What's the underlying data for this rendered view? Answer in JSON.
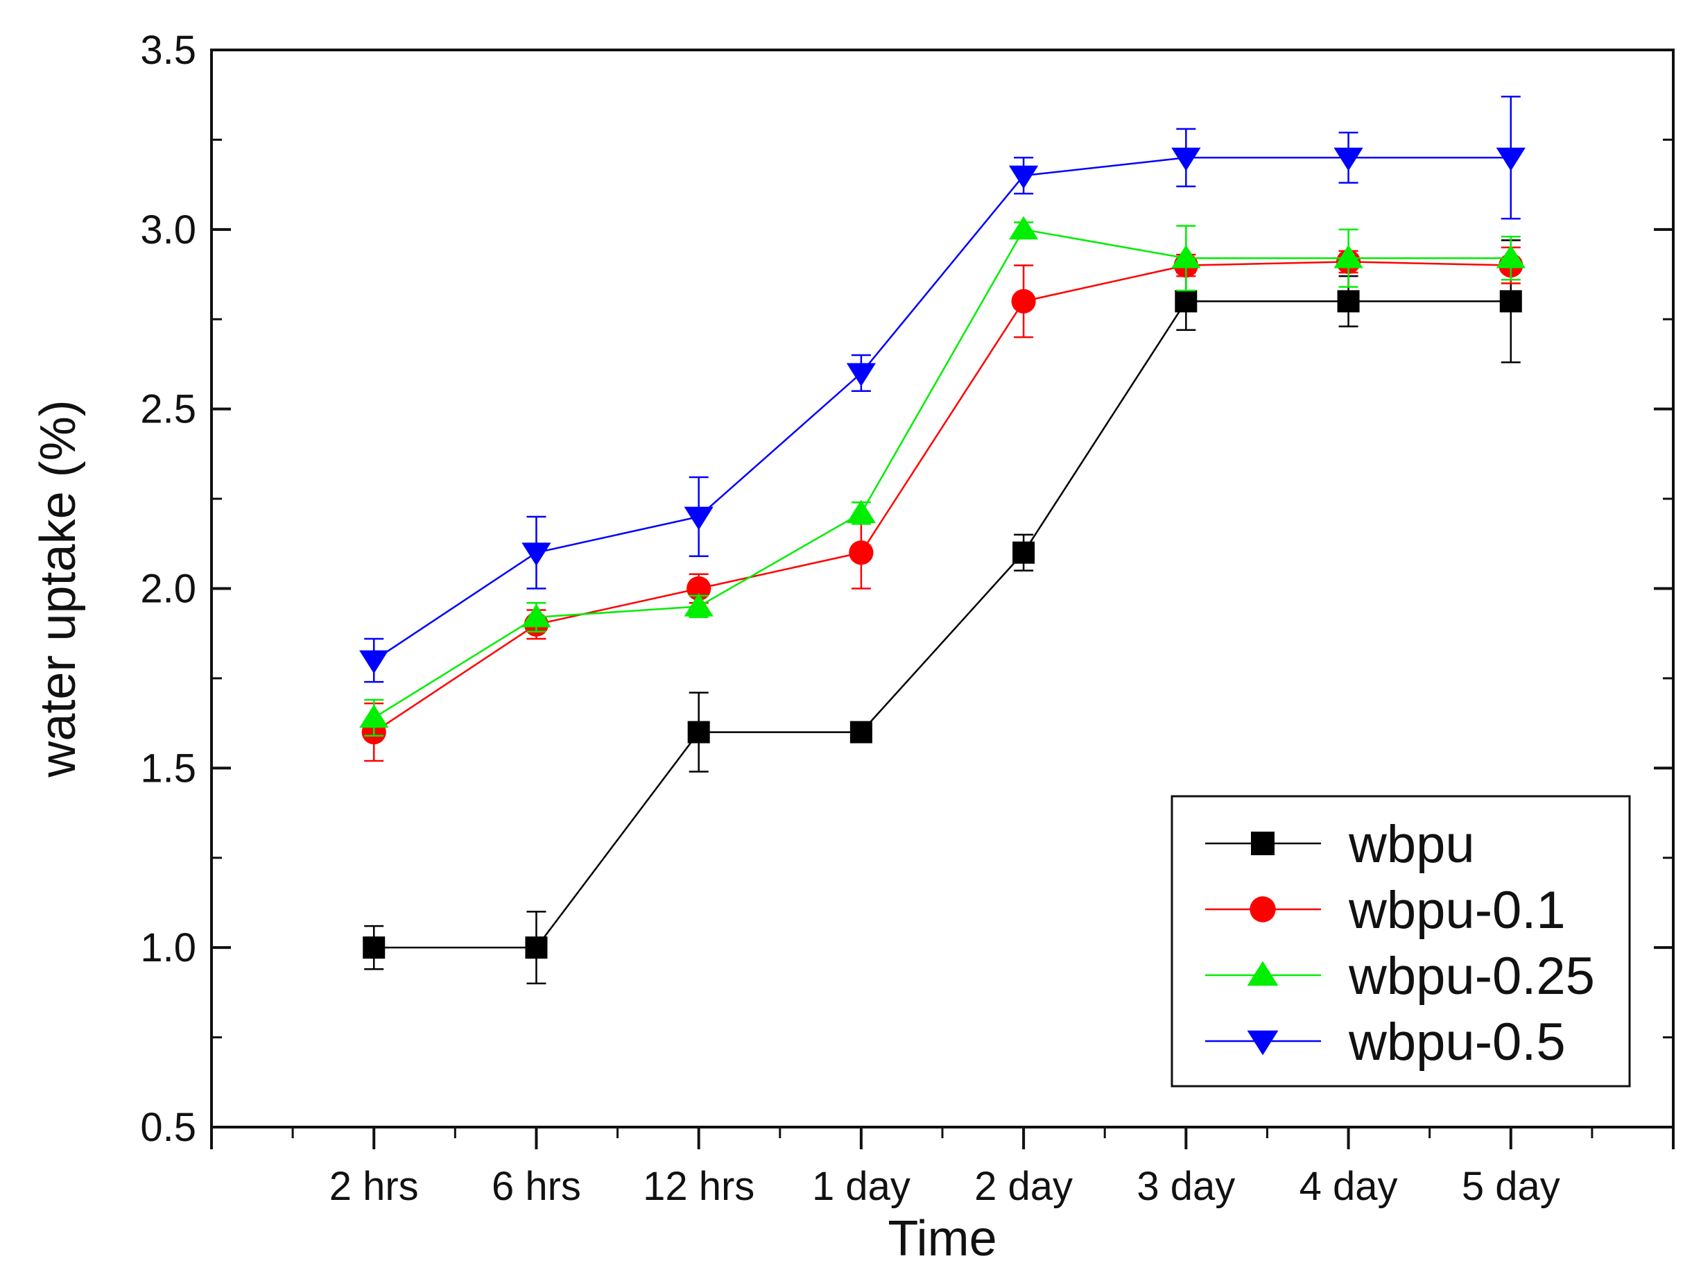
{
  "chart_data": {
    "type": "line",
    "title": "",
    "xlabel": "Time",
    "ylabel": "water uptake (%)",
    "categories": [
      "2 hrs",
      "6 hrs",
      "12 hrs",
      "1 day",
      "2 day",
      "3 day",
      "4 day",
      "5 day"
    ],
    "ylim": [
      0.5,
      3.5
    ],
    "yticks": [
      "0.5",
      "1.0",
      "1.5",
      "2.0",
      "2.5",
      "3.0",
      "3.5"
    ],
    "grid": false,
    "legend_position": "bottom-right",
    "series": [
      {
        "name": "wbpu",
        "color": "#000000",
        "marker": "square",
        "values": [
          1.0,
          1.0,
          1.6,
          1.6,
          2.1,
          2.8,
          2.8,
          2.8
        ],
        "errors": [
          0.06,
          0.1,
          0.11,
          0.02,
          0.05,
          0.08,
          0.07,
          0.17
        ]
      },
      {
        "name": "wbpu-0.1",
        "color": "#ff0000",
        "marker": "circle",
        "values": [
          1.6,
          1.9,
          2.0,
          2.1,
          2.8,
          2.9,
          2.91,
          2.9
        ],
        "errors": [
          0.08,
          0.04,
          0.04,
          0.1,
          0.1,
          0.03,
          0.03,
          0.05
        ]
      },
      {
        "name": "wbpu-0.25",
        "color": "#00ee00",
        "marker": "triangle-up",
        "values": [
          1.64,
          1.92,
          1.95,
          2.21,
          3.0,
          2.92,
          2.92,
          2.92
        ],
        "errors": [
          0.05,
          0.04,
          0.03,
          0.03,
          0.02,
          0.09,
          0.08,
          0.06
        ]
      },
      {
        "name": "wbpu-0.5",
        "color": "#0000ff",
        "marker": "triangle-down",
        "values": [
          1.8,
          2.1,
          2.2,
          2.6,
          3.15,
          3.2,
          3.2,
          3.2
        ],
        "errors": [
          0.06,
          0.1,
          0.11,
          0.05,
          0.05,
          0.08,
          0.07,
          0.17
        ]
      }
    ]
  }
}
